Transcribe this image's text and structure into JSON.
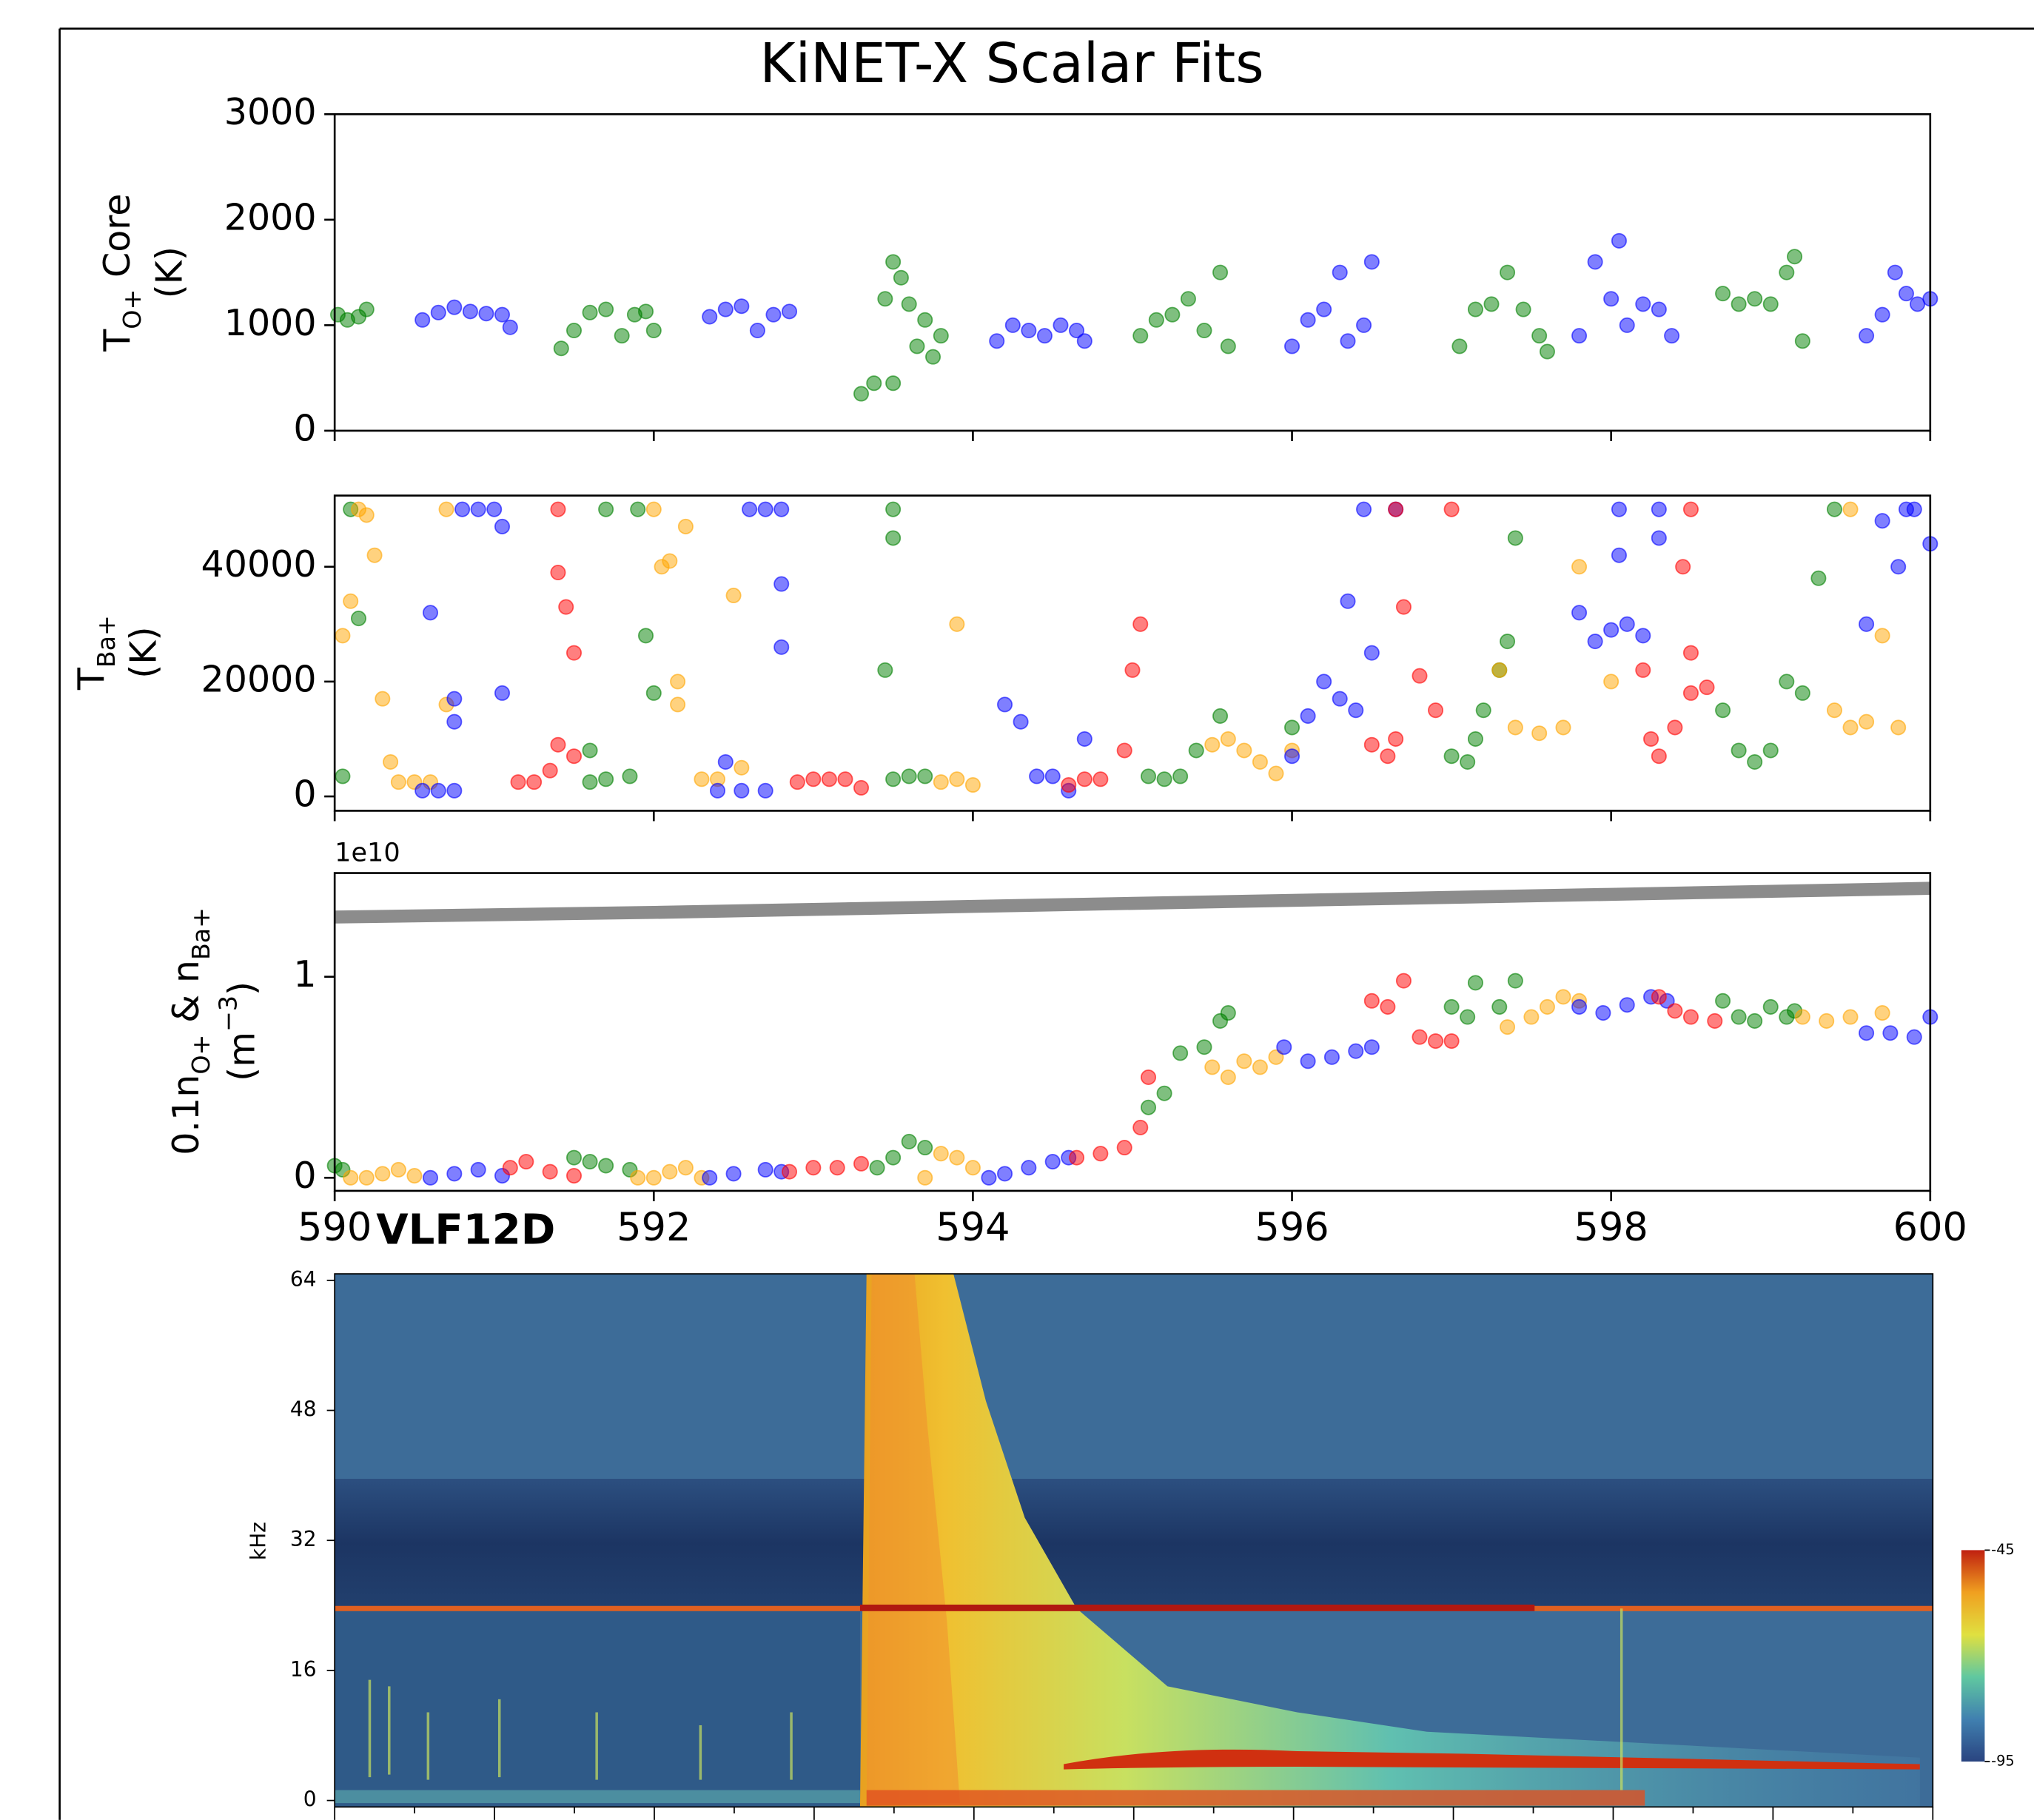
{
  "chart_data": [
    {
      "type": "scatter",
      "title": "KiNET-X Scalar Fits",
      "ylabel": [
        [
          {
            "t": "T"
          },
          {
            "t": "O+",
            "sub": true
          },
          {
            "t": " Core"
          }
        ],
        [
          {
            "t": "(K)"
          }
        ]
      ],
      "xlim": [
        590,
        600
      ],
      "xticks": [
        590,
        592,
        594,
        596,
        598,
        600
      ],
      "ylim": [
        0,
        3000
      ],
      "yticks": [
        0,
        1000,
        2000,
        3000
      ],
      "series": [
        {
          "color": "#008000",
          "x": [
            590.02,
            590.08,
            590.15,
            590.2,
            591.42,
            591.5,
            591.6,
            591.7,
            591.8,
            591.88,
            591.95,
            592.0,
            593.3,
            593.38,
            593.45,
            593.5,
            593.55,
            593.6,
            593.65,
            593.7,
            593.75,
            593.8,
            593.5,
            595.05,
            595.15,
            595.25,
            595.35,
            595.45,
            595.55,
            595.6,
            597.05,
            597.15,
            597.25,
            597.35,
            597.45,
            597.55,
            597.6,
            598.7,
            598.8,
            598.9,
            599.0,
            599.1,
            599.15,
            599.2
          ],
          "y": [
            1100,
            1050,
            1080,
            1150,
            780,
            950,
            1120,
            1150,
            900,
            1100,
            1130,
            950,
            350,
            450,
            1250,
            1600,
            1450,
            1200,
            800,
            1050,
            700,
            900,
            450,
            900,
            1050,
            1100,
            1250,
            950,
            1500,
            800,
            800,
            1150,
            1200,
            1500,
            1150,
            900,
            750,
            1300,
            1200,
            1250,
            1200,
            1500,
            1650,
            850
          ]
        },
        {
          "color": "#0000ff",
          "x": [
            590.55,
            590.65,
            590.75,
            590.85,
            590.95,
            591.05,
            591.1,
            592.35,
            592.45,
            592.55,
            592.65,
            592.75,
            592.85,
            594.15,
            594.25,
            594.35,
            594.45,
            594.55,
            594.65,
            594.7,
            596.0,
            596.1,
            596.2,
            596.3,
            596.35,
            596.45,
            596.5,
            597.8,
            597.9,
            598.0,
            598.05,
            598.1,
            598.2,
            598.3,
            598.38,
            599.6,
            599.7,
            599.78,
            599.85,
            599.92,
            600.0
          ],
          "y": [
            1050,
            1120,
            1170,
            1130,
            1110,
            1100,
            980,
            1080,
            1150,
            1180,
            950,
            1100,
            1130,
            850,
            1000,
            950,
            900,
            1000,
            950,
            850,
            800,
            1050,
            1150,
            1500,
            850,
            1000,
            1600,
            900,
            1600,
            1250,
            1800,
            1000,
            1200,
            1150,
            900,
            900,
            1100,
            1500,
            1300,
            1200,
            1250
          ]
        }
      ]
    },
    {
      "type": "scatter",
      "ylabel": [
        [
          {
            "t": "T"
          },
          {
            "t": "Ba+",
            "sub": true
          }
        ],
        [
          {
            "t": "(K)"
          }
        ]
      ],
      "xlim": [
        590,
        600
      ],
      "xticks": [
        590,
        592,
        594,
        596,
        598,
        600
      ],
      "ylim": [
        -2500,
        52400
      ],
      "yticks": [
        0,
        20000,
        40000
      ],
      "series": [
        {
          "color": "#008000",
          "x": [
            590.05,
            590.1,
            590.15,
            591.6,
            591.7,
            591.85,
            591.6,
            591.7,
            591.9,
            591.95,
            592.0,
            593.5,
            593.5,
            593.45,
            593.5,
            593.6,
            593.7,
            595.1,
            595.2,
            595.3,
            595.4,
            595.55,
            596.0,
            597.0,
            597.1,
            597.15,
            597.2,
            597.3,
            597.35,
            597.4,
            598.7,
            598.8,
            598.9,
            599.0,
            599.1,
            599.2,
            599.3,
            599.4
          ],
          "y": [
            3500,
            50000,
            31000,
            2500,
            3000,
            3500,
            8000,
            50000,
            50000,
            28000,
            18000,
            50000,
            45000,
            22000,
            3000,
            3500,
            3500,
            3500,
            3000,
            3500,
            8000,
            14000,
            12000,
            7000,
            6000,
            10000,
            15000,
            22000,
            27000,
            45000,
            15000,
            8000,
            6000,
            8000,
            20000,
            18000,
            38000,
            50000
          ]
        },
        {
          "color": "#ffa500",
          "x": [
            590.05,
            590.1,
            590.15,
            590.2,
            590.25,
            590.3,
            590.35,
            590.4,
            590.5,
            590.6,
            590.7,
            590.7,
            592.0,
            592.05,
            592.1,
            592.15,
            592.2,
            592.15,
            592.3,
            592.4,
            592.5,
            592.55,
            593.9,
            593.8,
            593.9,
            594.0,
            595.5,
            595.6,
            595.7,
            595.8,
            595.9,
            596.0,
            597.3,
            597.4,
            597.55,
            597.7,
            597.8,
            598.0,
            599.4,
            599.5,
            599.6,
            599.7,
            599.8,
            599.5
          ],
          "y": [
            28000,
            34000,
            50000,
            49000,
            42000,
            17000,
            6000,
            2500,
            2500,
            2500,
            16000,
            50000,
            50000,
            40000,
            41000,
            20000,
            47000,
            16000,
            3000,
            3000,
            35000,
            5000,
            30000,
            2500,
            3000,
            2000,
            9000,
            10000,
            8000,
            6000,
            4000,
            8000,
            22000,
            12000,
            11000,
            12000,
            40000,
            20000,
            15000,
            12000,
            13000,
            28000,
            12000,
            50000
          ]
        },
        {
          "color": "#0000ff",
          "x": [
            590.55,
            590.65,
            590.75,
            590.6,
            590.75,
            590.75,
            590.8,
            590.9,
            591.0,
            591.05,
            591.05,
            592.4,
            592.55,
            592.7,
            592.45,
            592.6,
            592.7,
            592.8,
            592.8,
            592.8,
            594.2,
            594.3,
            594.4,
            594.5,
            594.6,
            594.7,
            596.0,
            596.1,
            596.2,
            596.3,
            596.35,
            596.4,
            596.45,
            596.5,
            596.65,
            597.8,
            597.9,
            598.0,
            598.1,
            598.2,
            598.3,
            598.05,
            598.05,
            598.3,
            599.6,
            599.7,
            599.8,
            599.9,
            600.0,
            599.85
          ],
          "y": [
            1000,
            1000,
            1000,
            32000,
            17000,
            13000,
            50000,
            50000,
            50000,
            47000,
            18000,
            1000,
            1000,
            1000,
            6000,
            50000,
            50000,
            50000,
            26000,
            37000,
            16000,
            13000,
            3500,
            3500,
            1000,
            10000,
            7000,
            14000,
            20000,
            17000,
            34000,
            15000,
            50000,
            25000,
            50000,
            32000,
            27000,
            29000,
            30000,
            28000,
            45000,
            42000,
            50000,
            50000,
            30000,
            48000,
            40000,
            50000,
            44000,
            50000
          ]
        },
        {
          "color": "#ff0000",
          "x": [
            591.15,
            591.25,
            591.35,
            591.4,
            591.5,
            591.4,
            591.45,
            591.5,
            591.4,
            592.9,
            593.0,
            593.1,
            593.2,
            593.3,
            594.6,
            594.7,
            594.8,
            594.95,
            595.0,
            595.05,
            596.5,
            596.6,
            596.65,
            596.7,
            596.8,
            596.9,
            597.0,
            596.65,
            598.2,
            598.25,
            598.3,
            598.4,
            598.5,
            598.5,
            598.6,
            598.5,
            598.45
          ],
          "y": [
            2500,
            2500,
            4500,
            9000,
            7000,
            39000,
            33000,
            25000,
            50000,
            2500,
            3000,
            3000,
            3000,
            1500,
            2000,
            3000,
            3000,
            8000,
            22000,
            30000,
            9000,
            7000,
            10000,
            33000,
            21000,
            15000,
            50000,
            50000,
            22000,
            10000,
            7000,
            12000,
            25000,
            18000,
            19000,
            50000,
            40000
          ]
        }
      ]
    },
    {
      "type": "scatter",
      "offset_label": "1e10",
      "ylabel": [
        [
          {
            "t": "0.1n"
          },
          {
            "t": "O+",
            "sub": true
          },
          {
            "t": " & n"
          },
          {
            "t": "Ba+",
            "sub": true
          }
        ],
        [
          {
            "t": "(m"
          },
          {
            "t": "−3",
            "sup": true
          },
          {
            "t": ")"
          }
        ]
      ],
      "xlim": [
        590,
        600
      ],
      "xticks": [
        590,
        592,
        594,
        596,
        598,
        600
      ],
      "ylim": [
        -0.065,
        1.516
      ],
      "yticks": [
        0,
        1
      ],
      "series": [
        {
          "color": "#808080",
          "line": true,
          "x": [
            590,
            592,
            594,
            596,
            598,
            600
          ],
          "y": [
            1.297,
            1.32,
            1.35,
            1.38,
            1.41,
            1.44
          ]
        },
        {
          "color": "#008000",
          "x": [
            590.0,
            590.05,
            591.5,
            591.6,
            591.7,
            591.85,
            593.4,
            593.5,
            593.6,
            593.7,
            595.1,
            595.2,
            595.3,
            595.45,
            595.55,
            595.6,
            597.0,
            597.1,
            597.15,
            597.3,
            597.4,
            598.7,
            598.8,
            598.9,
            599.0,
            599.1,
            599.15
          ],
          "y": [
            0.06,
            0.04,
            0.1,
            0.08,
            0.06,
            0.04,
            0.05,
            0.1,
            0.18,
            0.15,
            0.35,
            0.42,
            0.62,
            0.65,
            0.78,
            0.82,
            0.85,
            0.8,
            0.97,
            0.85,
            0.98,
            0.88,
            0.8,
            0.78,
            0.85,
            0.8,
            0.83
          ]
        },
        {
          "color": "#ffa500",
          "x": [
            590.1,
            590.2,
            590.3,
            590.4,
            590.5,
            591.9,
            592.0,
            592.1,
            592.2,
            592.3,
            593.7,
            593.8,
            593.9,
            594.0,
            595.5,
            595.6,
            595.7,
            595.8,
            595.9,
            597.35,
            597.5,
            597.6,
            597.7,
            597.8,
            599.2,
            599.35,
            599.5,
            599.7
          ],
          "y": [
            0.0,
            0.0,
            0.02,
            0.04,
            0.01,
            0.0,
            0.0,
            0.03,
            0.05,
            0.0,
            0.0,
            0.12,
            0.1,
            0.05,
            0.55,
            0.5,
            0.58,
            0.55,
            0.6,
            0.75,
            0.8,
            0.85,
            0.9,
            0.88,
            0.8,
            0.78,
            0.8,
            0.82
          ]
        },
        {
          "color": "#0000ff",
          "x": [
            590.6,
            590.75,
            590.9,
            591.05,
            592.35,
            592.5,
            592.7,
            592.8,
            594.1,
            594.2,
            594.35,
            594.5,
            594.6,
            595.95,
            596.1,
            596.25,
            596.4,
            596.5,
            597.8,
            597.95,
            598.1,
            598.25,
            598.35,
            599.6,
            599.75,
            599.9,
            600.0
          ],
          "y": [
            0.0,
            0.02,
            0.04,
            0.01,
            0.0,
            0.02,
            0.04,
            0.03,
            0.0,
            0.02,
            0.05,
            0.08,
            0.1,
            0.65,
            0.58,
            0.6,
            0.63,
            0.65,
            0.85,
            0.82,
            0.86,
            0.9,
            0.88,
            0.72,
            0.72,
            0.7,
            0.8
          ]
        },
        {
          "color": "#ff0000",
          "x": [
            591.1,
            591.2,
            591.35,
            591.5,
            592.85,
            593.0,
            593.15,
            593.3,
            594.65,
            594.8,
            594.95,
            595.05,
            595.1,
            596.5,
            596.6,
            596.7,
            596.8,
            596.9,
            597.0,
            598.3,
            598.4,
            598.5,
            598.65
          ],
          "y": [
            0.05,
            0.08,
            0.03,
            0.01,
            0.03,
            0.05,
            0.05,
            0.07,
            0.1,
            0.12,
            0.15,
            0.25,
            0.5,
            0.88,
            0.85,
            0.98,
            0.7,
            0.68,
            0.68,
            0.9,
            0.83,
            0.8,
            0.78
          ]
        }
      ]
    },
    {
      "type": "spectrogram",
      "title": "VLF12D",
      "ylabel": "kHz",
      "ylim": [
        -0.8,
        64.8
      ],
      "yticks": [
        0,
        16,
        32,
        48,
        64
      ],
      "clim": [
        -95,
        -45
      ],
      "cticks": [
        -45,
        -95
      ]
    }
  ]
}
